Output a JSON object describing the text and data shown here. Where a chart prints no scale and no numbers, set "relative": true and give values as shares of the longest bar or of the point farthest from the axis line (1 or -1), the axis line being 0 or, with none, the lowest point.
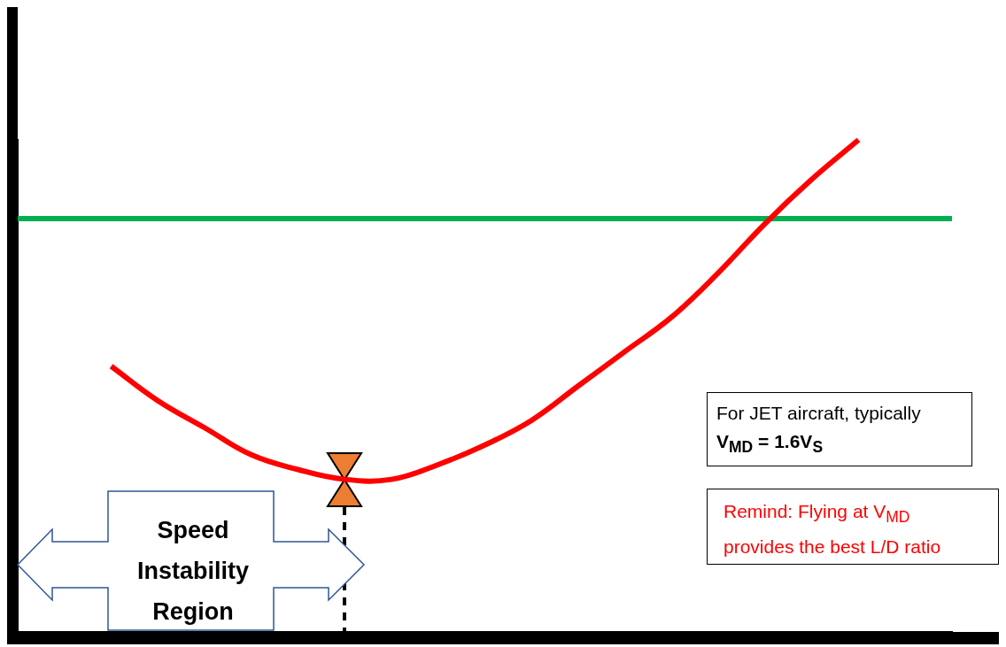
{
  "chart_data": {
    "type": "line",
    "relative": true,
    "legend": false,
    "grid": false,
    "marker": "none",
    "categories": [
      null,
      null,
      null,
      null,
      null,
      null,
      null,
      null,
      null,
      null,
      null,
      null,
      null,
      null,
      null,
      null,
      null,
      null,
      null,
      null,
      null
    ],
    "series": [
      {
        "color": "#ff0000",
        "values": [
          null,
          null,
          0.54,
          0.47,
          0.415,
          0.36,
          0.33,
          0.31,
          0.31,
          0.34,
          0.38,
          0.43,
          0.5,
          0.57,
          0.64,
          0.73,
          0.83,
          0.92,
          1,
          null,
          null
        ]
      },
      {
        "color": "#00b050",
        "values": [
          0.84,
          0.84,
          0.84,
          0.84,
          0.84,
          0.84,
          0.84,
          0.84,
          0.84,
          0.84,
          0.84,
          0.84,
          0.84,
          0.84,
          0.84,
          0.84,
          0.84,
          0.84,
          0.84,
          0.84,
          0.84
        ]
      }
    ],
    "annotations": [
      "Speed Instability Region",
      "For JET aircraft, typically",
      "V$_{MD}$ = 1.6V$_{S}$",
      "Remind: Flying at V$_{MD}$ provides the best L/D ratio"
    ]
  }
}
